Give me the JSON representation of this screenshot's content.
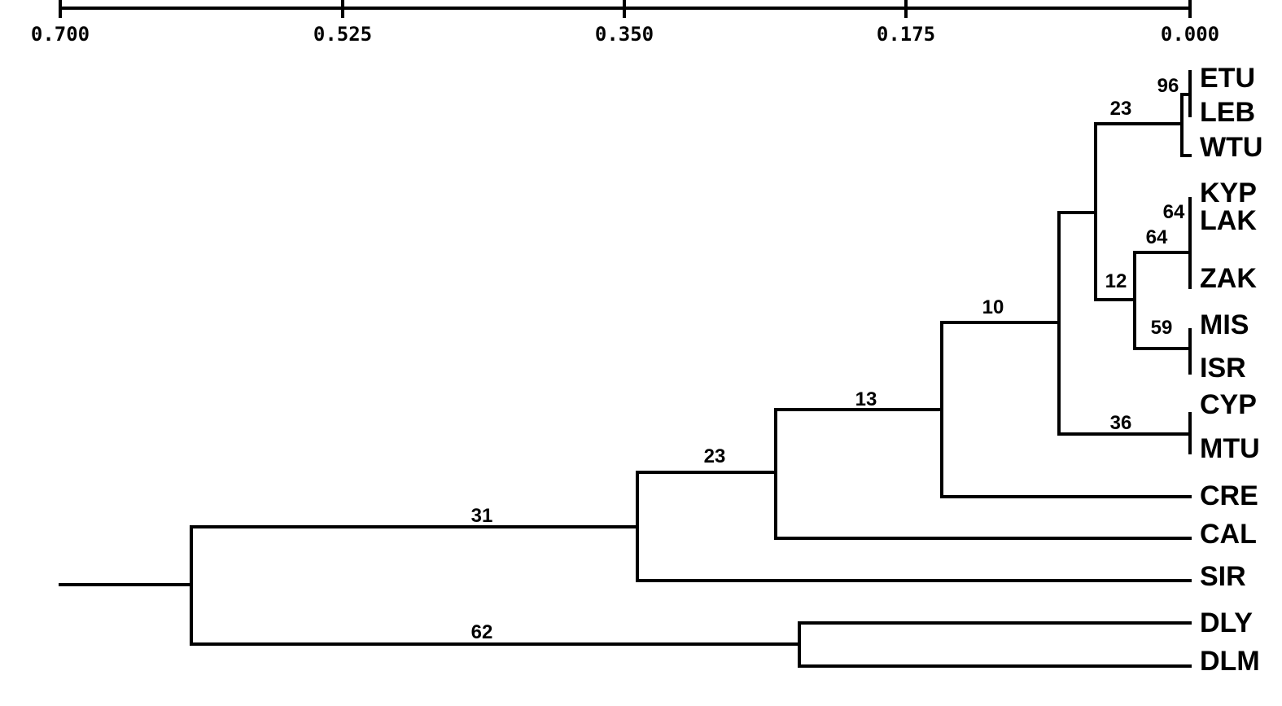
{
  "scale_axis": {
    "ticks": [
      "0.700",
      "0.525",
      "0.350",
      "0.175",
      "0.000"
    ]
  },
  "taxa": [
    "ETU",
    "LEB",
    "WTU",
    "KYP",
    "LAK",
    "ZAK",
    "MIS",
    "ISR",
    "CYP",
    "MTU",
    "CRE",
    "CAL",
    "SIR",
    "DLY",
    "DLM"
  ],
  "bootstrap": {
    "etu_leb": "96",
    "etu_leb_wtu": "23",
    "kyp_lak": "64",
    "kyp_lak_zak": "64",
    "mis_isr": "59",
    "kyp_to_isr": "12",
    "cyp_mtu": "36",
    "etu_to_mtu": "10",
    "etu_to_cre": "13",
    "etu_to_cal": "23",
    "etu_to_sir": "31",
    "dly_dlm": "62"
  }
}
